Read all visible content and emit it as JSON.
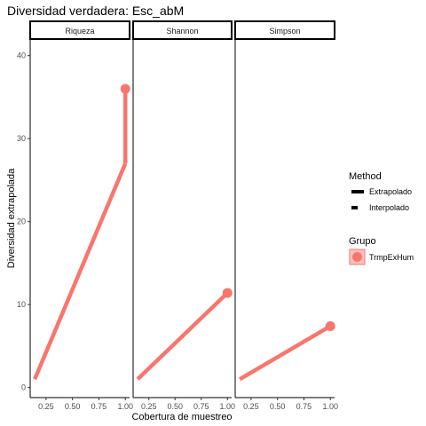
{
  "chart_data": {
    "type": "line",
    "title": "Diversidad verdadera: Esc_abM",
    "xlabel": "Cobertura de muestreo",
    "ylabel": "Diversidad extrapolada",
    "ylim": [
      -1,
      42
    ],
    "yticks": [
      0,
      10,
      20,
      30,
      40
    ],
    "xlim": [
      0.1,
      1.04
    ],
    "xticks": [
      "0.25",
      "0.50",
      "0.75",
      "1.00"
    ],
    "grid": false,
    "legend_position": "right",
    "color": "#F8766D",
    "panels": [
      {
        "name": "Riqueza",
        "interpolado": [
          [
            0.143,
            1
          ],
          [
            1.0,
            27
          ]
        ],
        "extrapolado": [
          [
            1.0,
            27
          ],
          [
            1.0,
            36
          ]
        ],
        "observed": [
          1.0,
          36
        ]
      },
      {
        "name": "Shannon",
        "interpolado": [
          [
            0.143,
            1
          ],
          [
            1.0,
            11.4
          ]
        ],
        "extrapolado": [
          [
            1.0,
            11.4
          ],
          [
            1.0,
            11.5
          ]
        ],
        "observed": [
          1.0,
          11.4
        ]
      },
      {
        "name": "Simpson",
        "interpolado": [
          [
            0.143,
            1
          ],
          [
            1.0,
            7.4
          ]
        ],
        "extrapolado": [
          [
            1.0,
            7.4
          ],
          [
            1.0,
            7.5
          ]
        ],
        "observed": [
          1.0,
          7.4
        ]
      }
    ],
    "legend": {
      "method_title": "Method",
      "method_items": [
        "Extrapolado",
        "Interpolado"
      ],
      "group_title": "Grupo",
      "group_items": [
        "TrmpExHum"
      ]
    }
  }
}
